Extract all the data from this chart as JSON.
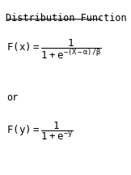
{
  "title": "Distribution Function",
  "bg_color": "#ffffff",
  "text_color": "#000000",
  "fig_width": 1.62,
  "fig_height": 2.16,
  "dpi": 100,
  "formula1": "$\\mathrm{F}(x) = \\dfrac{1}{1+e^{-(X-\\alpha)/\\beta}}$",
  "or_text": "or",
  "formula2": "$\\mathrm{F}(y) = \\dfrac{1}{1+e^{-y}}$",
  "title_fontsize": 8.5,
  "formula_fontsize": 9,
  "or_fontsize": 8.5
}
